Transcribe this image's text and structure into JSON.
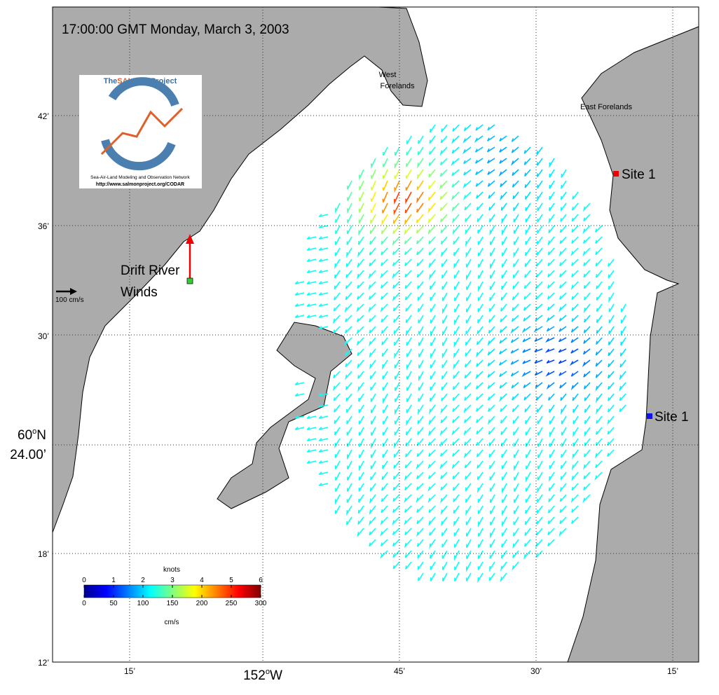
{
  "title": "17:00:00 GMT Monday, March 3, 2003",
  "logo": {
    "prefix": "The",
    "highlight": "SALMON",
    "suffix": "Project",
    "tagline": "Sea-Air-Land Modeling and Observation Network",
    "url": "http://www.salmonproject.org/CODAR"
  },
  "labels": {
    "west_forelands": [
      "West",
      "Forelands"
    ],
    "east_forelands": "East Forelands",
    "site_north": "Site 1",
    "site_south": "Site 1",
    "drift_river": [
      "Drift River",
      "Winds"
    ],
    "scale": "100 cm/s"
  },
  "lat_ticks": [
    "42’",
    "36’",
    "30’",
    "18’",
    "12’"
  ],
  "lat_center": {
    "deg": "60",
    "sup": "o",
    "hemi": "N",
    "min": "24.00’"
  },
  "lon_ticks": [
    "15’",
    "45’",
    "30’",
    "15’"
  ],
  "lon_center": {
    "deg": "152",
    "sup": "o",
    "hemi": "W"
  },
  "colorbar": {
    "top_title": "knots",
    "top_ticks": [
      0,
      1,
      2,
      3,
      4,
      5,
      6
    ],
    "bottom_ticks": [
      0,
      50,
      100,
      150,
      200,
      250,
      300
    ],
    "bottom_title": "cm/s"
  }
}
